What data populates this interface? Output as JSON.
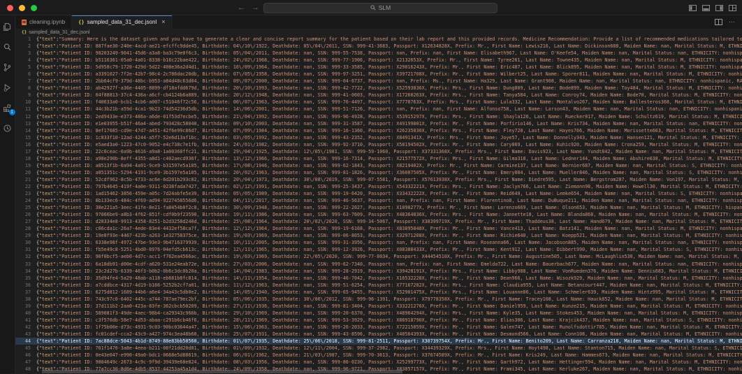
{
  "titlebar": {
    "command_center_text": "SLM",
    "back_arrow": "←",
    "forward_arrow": "→"
  },
  "tabs": [
    {
      "label": "cleaning.ipynb",
      "icon": "notebook-icon",
      "active": false
    },
    {
      "label": "sampled_data_31_dec.jsonl",
      "icon": "json-icon",
      "active": true,
      "close": "×"
    }
  ],
  "tab_actions": {
    "ellipsis": "⋯"
  },
  "breadcrumb": {
    "icon": "{}",
    "file": "sampled_data_31_dec.jsonl"
  },
  "activity_bar": {
    "items": [
      "explorer-icon",
      "search-icon",
      "source-control-icon",
      "run-debug-icon",
      "extensions-icon",
      "remote-circle-icon"
    ],
    "extensions_badge": "1"
  },
  "accent_colors": {
    "badge_blue": "#0078d4",
    "string_orange": "#ce9178",
    "tab_top_border": "#4a88c7"
  },
  "editor": {
    "selected_line": 44,
    "line_prefix": {
      "open": "{",
      "key": "\"text\"",
      "colon": ":",
      "quote": "\""
    },
    "lines": [
      {
        "n": 1,
        "body": "Summary: Here is the dataset given and you have to generate a clear and concise report summary for the patient based on their lab report and this provided records. Medicine Recommendation: Provide a list of recommended medications tailored to the patient's conditions and lab results."
      },
      {
        "n": 2,
        "body": "Patient ID: 887fae30-240e-4acd-ae21-efcffc9dde45, Birthdate: 04\\/10\\/1922, Deathdate: 05\\/04\\/2011, SSN: 999-41-3683, Passport: X12634828X, Prefix: Mr., First Name: Lewis216, Last Name: Dickinson688, Maiden Name: nan, Marital Status: M, ETHNICITY: nonhispanic, RACE: white, GENDER: M"
      },
      {
        "n": 3,
        "body": "Patient ID: 98203249-9041-45d6-a3a8-ba3c79e0f6c3, Birthdate: 05\\/04\\/2011, Deathdate: nan, SSN: 999-55-7538, Passport: nan, Prefix: nan, First Name: Elisabeth967, Last Name: O'Keefe54, Maiden Name: nan, Marital Status: nan, ETHNICITY: nonhispanic, RACE: white, GENDER: F"
      },
      {
        "n": 4,
        "body": "Patient ID: b5116361-05a0-4a01-8338-b16c22bae422, Birthdate: 24\\/02\\/1968, Deathdate: nan, SSN: 999-77-1906, Passport: X2132653X, Prefix: Mr., First Name: Tyree261, Last Name: Towne435, Maiden Name: nan, Marital Status: M, ETHNICITY: nonhispanic, RACE: white, GENDER: M"
      },
      {
        "n": 5,
        "body": "Patient ID: 5d958c79-1720-429d-5d22-408e36a2d4d1, Birthdate: 16\\/09\\/1964, Deathdate: nan, SSN: 999-33-3585, Passport: X29016243X, Prefix: Mr., First Name: Eric487, Last Name: Blick895, Maiden Name: nan, Marital Status: M, ETHNICITY: nonhispanic, RACE: white, GENDER: M"
      },
      {
        "n": 6,
        "body": "Patient ID: a3391027-7f2e-42b7-98c4-2c786dac20db, Birthdate: 07\\/05\\/1958, Deathdate: nan, SSN: 999-97-3251, Passport: X39721708X, Prefix: Mr., First Name: Wilbert25, Last Name: Sporer811, Maiden Name: nan, Marital Status: M, ETHNICITY: nonhispanic, RACE: white, GENDER: M"
      },
      {
        "n": 7,
        "body": "Patient ID: 2bb64cf9-379d-48bc-b953-a84d48c63d04, Birthdate: 09\\/07\\/2000, Deathdate: nan, SSN: 999-04-6737, Passport: nan, Prefix: Ms., First Name: Ha329, Last Name: Grant908, Maiden Name: nan, Marital Status: nan, ETHNICITY: nonhispanic, RACE: white, GENDER: F"
      },
      {
        "n": 8,
        "body": "Patient ID: ab42927f-a36e-4405-8899-df18afdd679d, Birthdate: 20\\/10\\/1993, Deathdate: nan, SSN: 999-42-7722, Passport: X52593836X, Prefix: Mrs., First Name: Dung809, Last Name: Bode899, Maiden Name: Toy484, Marital Status: M, ETHNICITY: nonhispanic, RACE: asian, GENDER: F"
      },
      {
        "n": 9,
        "body": "Patient ID: 04f88813-37c4-436a-a6cf-cb4124b6a889, Birthdate: 20\\/12\\/1948, Deathdate: nan, SSN: 999-41-0603, Passport: X17260263X, Prefix: Mrs., First Name: Tanya584, Last Name: Conroy74, Maiden Name: Bode70, Marital Status: M, ETHNICITY: nonhispanic, RACE: white, GENDER: F"
      },
      {
        "n": 10,
        "body": "Patient ID: f40633a0-bcb1-4cb6-a007-c51046f72c56, Birthdate: 06\\/07\\/1963, Deathdate: nan, SSN: 999-76-4497, Passport: X7770763X, Prefix: Mrs., First Name: Lula332, Last Name: Montalvo267, Maiden Name: Ballesteros368, Marital Status: M, ETHNICITY: hispanic, RACE: white"
      },
      {
        "n": 11,
        "body": "Patient ID: 44c3b21b-a59d-4ca1-9b23-74d54236d5db, Birthdate: 14\\/06\\/2001, Deathdate: nan, SSN: 999-51-7126, Passport: nan, Prefix: nan, First Name: Alfonso758, Last Name: Larson43, Maiden Name: nan, Marital Status: nan, ETHNICITY: nonhispanic, RACE: white, GENDER: M"
      },
      {
        "n": 12,
        "body": "Patient ID: 2ed9433e-e373-486a-a6de-01f53d7ecbe5, Birthdate: 21\\/04\\/1992, Deathdate: nan, SSN: 999-96-4928, Passport: X53915297X, Prefix: Mrs., First Name: Shayla126, Last Name: Ruecker817, Maiden Name: Schultz619, Marital Status: M, ETHNICITY: nonhispanic, RACE: white"
      },
      {
        "n": 13,
        "body": "Patient ID: e1e03955-b51f-46a4-abed-793428c58040, Birthdate: 09\\/10\\/2003, Deathdate: nan, SSN: 999-31-3587, Passport: X49199801X, Prefix: Mr., First Name: Porfirio146, Last Name: Kris734, Maiden Name: nan, Marital Status: nan, ETHNICITY: nonhispanic, RACE: white, GENDER: M"
      },
      {
        "n": 14,
        "body": "Patient ID: 8ef17685-cd9e-47d7-a451-42f6e99c86d7, Birthdate: 07\\/09\\/1984, Deathdate: nan, SSN: 999-16-1360, Passport: X26235830X, Prefix: Mrs., First Name: Fley720, Last Name: Hayes766, Maiden Name: Morissette663, Marital Status: M, ETHNICITY: nonhispanic, RACE: white"
      },
      {
        "n": 15,
        "body": "Patient ID: 1c833f10-12ad-4244-a5f7-52e6d13af1bc, Birthdate: 03\\/05\\/1992, Deathdate: nan, SSN: 999-43-2352, Passport: X8491341X, Prefix: Mrs., First Name: Joye57, Last Name: Donnelly343, Maiden Name: Hansen121, Marital Status: M, ETHNICITY: nonhispanic, RACE: white"
      },
      {
        "n": 16,
        "body": "Patient ID: e5aed3a0-1223-47c0-9052-e4c738c7e1fb, Birthdate: 24\\/01\\/1982, Deathdate: nan, SSN: 999-92-3710, Passport: X58194502X, Prefix: Mr., First Name: Cary869, Last Name: Kuhic920, Maiden Name: Crona259, Marital Status: M, ETHNICITY: nonhispanic, RACE: white, GENDER: M"
      },
      {
        "n": 17,
        "body": "Patient ID: 22c0ceac-0a9b-4616-a9a8-1a00360ffc21, Birthdate: 29\\/04\\/1925, Deathdate: 12\\/05\\/1981, SSN: 999-59-1060, Passport: X37331368X, Prefix: Mrs., First Name: Davis923, Last Name: Yundt842, Maiden Name: nan, Marital Status: M, ETHNICITY: nonhispanic, RACE: white"
      },
      {
        "n": 18,
        "body": "Patient ID: a98e290b-8eff-4355-a8d1-c402aecd936f, Birthdate: 13\\/12\\/1966, Deathdate: nan, SSN: 999-16-7314, Passport: X21577572X, Prefix: Mrs., First Name: Gilma318, Last Name: Ledner144, Maiden Name: Abshire638, Marital Status: M, ETHNICITY: nonhispanic, RACE: white"
      },
      {
        "n": 19,
        "body": "Patient ID: a8513f1b-0a94-4a91-9ce9-b31597e5a105, Birthdate: 17\\/08\\/1946, Deathdate: nan, SSN: 999-62-1843, Passport: X8219402X, Prefix: Mr., First Name: Carmine137, Last Name: Bernier687, Maiden Name: nan, Marital Status: S, ETHNICITY: nonhispanic, RACE: white, GENDER: M"
      },
      {
        "n": 20,
        "body": "Patient ID: a851351c-5294-4191-9ce9-3b1597e5a105, Birthdate: 20\\/02\\/1963, Deathdate: nan, SSN: 999-81-1826, Passport: X36007505X, Prefix: Mr., First Name: Emery884, Last Name: Mueller846, Maiden Name: nan, Marital Status: S, ETHNICITY: nonhispanic, RACE: white, GENDER: M"
      },
      {
        "n": 21,
        "body": "Patient ID: 52cdf962-8c5b-4733-ac6e-6d201b293c02, Birthdate: 20\\/04\\/1973, Deathdate: 30\\/08\\/2019, SSN: 999-07-5581, Passport: X57613938X, Prefix: Mrs., First Name: Diedre595, Last Name: Bergstrom287, Maiden Name: Von197, Marital Status: M, ETHNICITY: nonhispanic, RACE: white"
      },
      {
        "n": 22,
        "body": "Patient ID: 797b4645-419f-4a0e-9311-0238fada7427, Birthdate: 02\\/12\\/1991, Deathdate: nan, SSN: 999-25-3437, Passport: X54332221X, Prefix: Mrs., First Name: Jaclyn766, Last Name: Ziemann98, Maiden Name: Howell30, Marital Status: M, ETHNICITY: nonhispanic, RACE: white"
      },
      {
        "n": 23,
        "body": "Patient ID: 1ad15462-3856-459e-a05c-7d24abfe5e39, Birthdate: 05\\/05\\/1989, Deathdate: nan, SSN: 999-19-6420, Passport: X33432222X, Prefix: Mr., First Name: Reid649, Last Name: Lemke654, Maiden Name: nan, Marital Status: S, ETHNICITY: nonhispanic, RACE: white, GENDER: M"
      },
      {
        "n": 24,
        "body": "Patient ID: 8b133ec6-484c-4f69-ad94-9227458556d6, Birthdate: 04\\/11\\/2017, Deathdate: nan, SSN: 999-46-5637, Passport: nan, Prefix: nan, First Name: Florentino8, Last Name: DuBuque211, Maiden Name: nan, Marital Status: nan, ETHNICITY: nonhispanic, RACE: white, GENDER: M"
      },
      {
        "n": 25,
        "body": "Patient ID: 38e221a5-3eec-41fe-8e21-fa8454b0f2c0, Birthdate: 30\\/09\\/1948, Deathdate: nan, SSN: 999-22-2027, Passport: X1090277X, Prefix: Mr., First Name: Lorenzo669, Last Name: Olson653, Maiden Name: nan, Marital Status: M, ETHNICITY: hispanic, RACE: white, GENDER: M"
      },
      {
        "n": 26,
        "body": "Patient ID: 97066be9-a8b3-4f62-851f-cdf0b9f23590, Birthdate: 19\\/11\\/1986, Deathdate: nan, SSN: 999-63-7609, Passport: X48364836X, Prefix: Mrs., First Name: Jannette18, Last Name: Blanda868, Maiden Name: nan, Marital Status: M, ETHNICITY: nonhispanic, RACE: white, GENDER: F"
      },
      {
        "n": 27,
        "body": "Patient ID: d28334e8-9913-4358-8251-b2d3258d240d, Birthdate: 25\\/08\\/1964, Deathdate: 20\\/02\\/2020, SSN: 999-34-5067, Passport: X38399719X, Prefix: Mr., First Name: Thaddeus38, Last Name: Hand679, Maiden Name: nan, Marital Status: M, ETHNICITY: nonhispanic, RACE: white"
      },
      {
        "n": 28,
        "body": "Patient ID: c06cda1c-26a7-4ede-83e4-4432ef58ca7f, Birthdate: 12\\/12\\/1964, Deathdate: nan, SSN: 999-19-6168, Passport: X83895048X, Prefix: Mr., First Name: Vance413, Last Name: Batz141, Maiden Name: nan, Marital Status: M, ETHNICITY: nonhispanic, RACE: white, GENDER: M"
      },
      {
        "n": 29,
        "body": "Patient ID: 19e8f93e-4467-423b-a263-1e32758375ce, Birthdate: 19\\/03\\/1969, Deathdate: nan, SSN: 999-06-8053, Passport: X32971208X, Prefix: Mr., First Name: Richie640, Last Name: Koepp521, Maiden Name: nan, Marital Status: M, ETHNICITY: nonhispanic, RACE: white, GENDER: M"
      },
      {
        "n": 30,
        "body": "Patient ID: 6338e98f-4972-47be-93e3-9b4716379939, Birthdate: 10\\/11\\/2005, Deathdate: nan, SSN: 999-31-3956, Passport: nan, Prefix: nan, First Name: Roseanna66, Last Name: Jacobson885, Maiden Name: nan, Marital Status: nan, ETHNICITY: nonhispanic, RACE: white, GENDER: F"
      },
      {
        "n": 31,
        "body": "Patient ID: fb5e49c8-5251-4bd0-8976-04efd5cb613c, Birthdate: 12\\/11\\/1965, Deathdate: nan, SSN: 999-12-3926, Passport: X08388433X, Prefix: Mr., First Name: Kent912, Last Name: Dibbert990, Maiden Name: nan, Marital Status: S, ETHNICITY: nonhispanic, RACE: white, GENDER: M"
      },
      {
        "n": 32,
        "body": "Patient ID: 90f0bcf5-aeb0-4d7c-acc1-f762ea4566ac, Birthdate: 19\\/03\\/1969, Deathdate: 22\\/05\\/2020, SSN: 999-77-8034, Passport: X44454510X, Prefix: Mr., First Name: Augustine505, Last Name: McLaughlin530, Maiden Name: nan, Marital Status: M, ETHNICITY: nonhispanic, RACE: white"
      },
      {
        "n": 33,
        "body": "Patient ID: 6a18db91-d00e-4cdf-a620-531e24eab72e, Birthdate: 27\\/03\\/2006, Deathdate: nan, SSN: 999-62-7340, Passport: nan, Prefix: nan, First Name: Emelda722, Last Name: Bauerbach677, Maiden Name: nan, Marital Status: nan, ETHNICITY: nonhispanic, RACE: white, GENDER: F"
      },
      {
        "n": 34,
        "body": "Patient ID: 23c2d27b-6339-46f3-b0b2-0b6c3dc0b20a, Birthdate: 14\\/04\\/1983, Deathdate: nan, SSN: 999-28-2919, Passport: X39428191X, Prefix: Mrs., First Name: Libby988, Last Name: VonRueden376, Maiden Name: Dennis683, Marital Status: M, ETHNICITY: nonhispanic, RACE: white"
      },
      {
        "n": 35,
        "body": "Patient ID: 35d94fe4-5a29-48ab-a118-eb681b8fc814, Birthdate: 14\\/11\\/1954, Deathdate: nan, SSN: 999-46-7042, Passport: X16532228X, Prefix: Mr., First Name: Dean966, Last Name: Wisozk929, Maiden Name: nan, Marital Status: M, ETHNICITY: nonhispanic, RACE: white, GENDER: M"
      },
      {
        "n": 36,
        "body": "Patient ID: a7cddbce-4317-4d19-b166-5252b2cf7a01, Birthdate: 11\\/12\\/1963, Deathdate: nan, SSN: 999-51-6254, Passport: X77167282X, Prefix: Mrs., First Name: Claudia955, Last Name: Betancourt447, Maiden Name: nan, Marital Status: M, ETHNICITY: hispanic, RACE: white"
      },
      {
        "n": 37,
        "body": "Patient ID: 6275d812-1689-44b6-a6e4-34a43c5db0e2, Birthdate: 14\\/05\\/1940, Deathdate: nan, SSN: 999-65-9455, Passport: X52901475X, Prefix: Mrs., First Name: Louanne86, Last Name: Schmeler639, Maiden Name: Hintz995, Marital Status: M, ETHNICITY: nonhispanic, RACE: white"
      },
      {
        "n": 38,
        "body": "Patient ID: 743c97c0-6402-445c-a744-787ae79ec2bf, Birthdate: 05\\/06\\/1935, Deathdate: 30\\/06\\/2012, SSN: 999-96-1391, Passport: X79778358X, Prefix: Mr., First Name: Tracey108, Last Name: Hauck852, Maiden Name: nan, Marital Status: M, ETHNICITY: nonhispanic, RACE: white"
      },
      {
        "n": 39,
        "body": "Patient ID: 37d111b2-2aa0-423a-83fe-362cbcb50209, Birthdate: 27\\/11\\/1936, Deathdate: nan, SSN: 999-81-3404, Passport: X33221276X, Prefix: Mr., First Name: Daniel959, Last Name: Kunze215, Maiden Name: nan, Marital Status: M, ETHNICITY: nonhispanic, RACE: white, GENDER: M"
      },
      {
        "n": 40,
        "body": "Patient ID: 589081f3-49de-4aec-98b4-ca29343c966b, Birthdate: 29\\/10\\/1969, Deathdate: nan, SSN: 999-20-6370, Passport: X48964294X, Prefix: Mrs., First Name: Kyle35, Last Name: Stokes453, Maiden Name: nan, Marital Status: M, ETHNICITY: nonhispanic, RACE: white, GENDER: F"
      },
      {
        "n": 41,
        "body": "Patient ID: c3f576db-58e7-4d53-abaa-c291b6cb46f6, Birthdate: 28\\/11\\/1969, Deathdate: nan, SSN: 999-53-3929, Passport: X88918790X, Prefix: Mr., First Name: Elias306, Last Name: Krajcik437, Maiden Name: nan, Marital Status: S, ETHNICITY: nonhispanic, RACE: white, GENDER: M"
      },
      {
        "n": 42,
        "body": "Patient ID: 1f75b00e-d73c-4931-9c03-90bc03644a47, Birthdate: 15\\/06\\/1963, Deathdate: nan, SSN: 999-26-2033, Passport: X72215059X, Prefix: Mr., First Name: Galen747, Last Name: Runolfsdottir785, Maiden Name: nan, Marital Status: M, ETHNICITY: nonhispanic, RACE: white"
      },
      {
        "n": 43,
        "body": "Patient ID: fc01cdef-cca2-43c9-a427-974c3ea48b60, Birthdate: 25\\/07\\/1931, Deathdate: nan, SSN: 999-43-8596, Passport: X40564393X, Prefix: Mr., First Name: Desmond566, Last Name: Conn108, Maiden Name: nan, Marital Status: M, ETHNICITY: nonhispanic, RACE: white, GENDER: M"
      },
      {
        "n": 44,
        "body": "Patient ID: 7ac88dce-5043-4b1d-8749-88e83bb50560, Birthdate: 01\\/07\\/1935, Deathdate: 25\\/06\\/2018, SSN: 999-81-2511, Passport: X30739754X, Prefix: Mr., First Name: Benito209, Last Name: Carranza218, Maiden Name: nan, Marital Status: M, ETHNICITY: hispanic, RACE: white"
      },
      {
        "n": 45,
        "body": "Patient ID: 761f1476-3a8e-4eea-b211-08f21dd20d81, Birthdate: 01\\/09\\/1932, Deathdate: 12\\/11\\/2004, SSN: 999-37-2982, Passport: X34439329X, Prefix: Mrs., First Name: Hoyt498, Last Name: Stanton715, Maiden Name: nan, Marital Status: S, ETHNICITY: nonhispanic, RACE: white"
      },
      {
        "n": 46,
        "body": "Patient ID: 0e43e047-e990-49a0-bdc1-0668e5d88619, Birthdate: 06\\/01\\/1962, Deathdate: 21\\/03\\/1987, SSN: 999-70-3613, Passport: X37674589X, Prefix: Mr., First Name: Kris249, Last Name: Hammes673, Maiden Name: nan, Marital Status: M, ETHNICITY: nonhispanic, RACE: white"
      },
      {
        "n": 47,
        "body": "Patient ID: 9804649c-2673-4c9c-9f9d-39439e68e824, Birthdate: 08\\/03\\/1956, Deathdate: nan, SSN: 999-86-0230, Passport: X25299773X, Prefix: Mr., First Name: Garth972, Last Name: Hettinger594, Maiden Name: nan, Marital Status: M, ETHNICITY: nonhispanic, RACE: white"
      },
      {
        "n": 48,
        "body": "Patient ID: 77a7cc30-8d6e-4db5-8537-44253a45a1d4, Birthdate: 24\\/09\\/1958, Deathdate: nan, SSN: 999-96-9721, Passport: X83857157X, Prefix: Mr., First Name: Frami345, Last Name: Kerluke267, Maiden Name: nan, Marital Status: M, ETHNICITY: nonhispanic, RACE: white"
      }
    ]
  }
}
